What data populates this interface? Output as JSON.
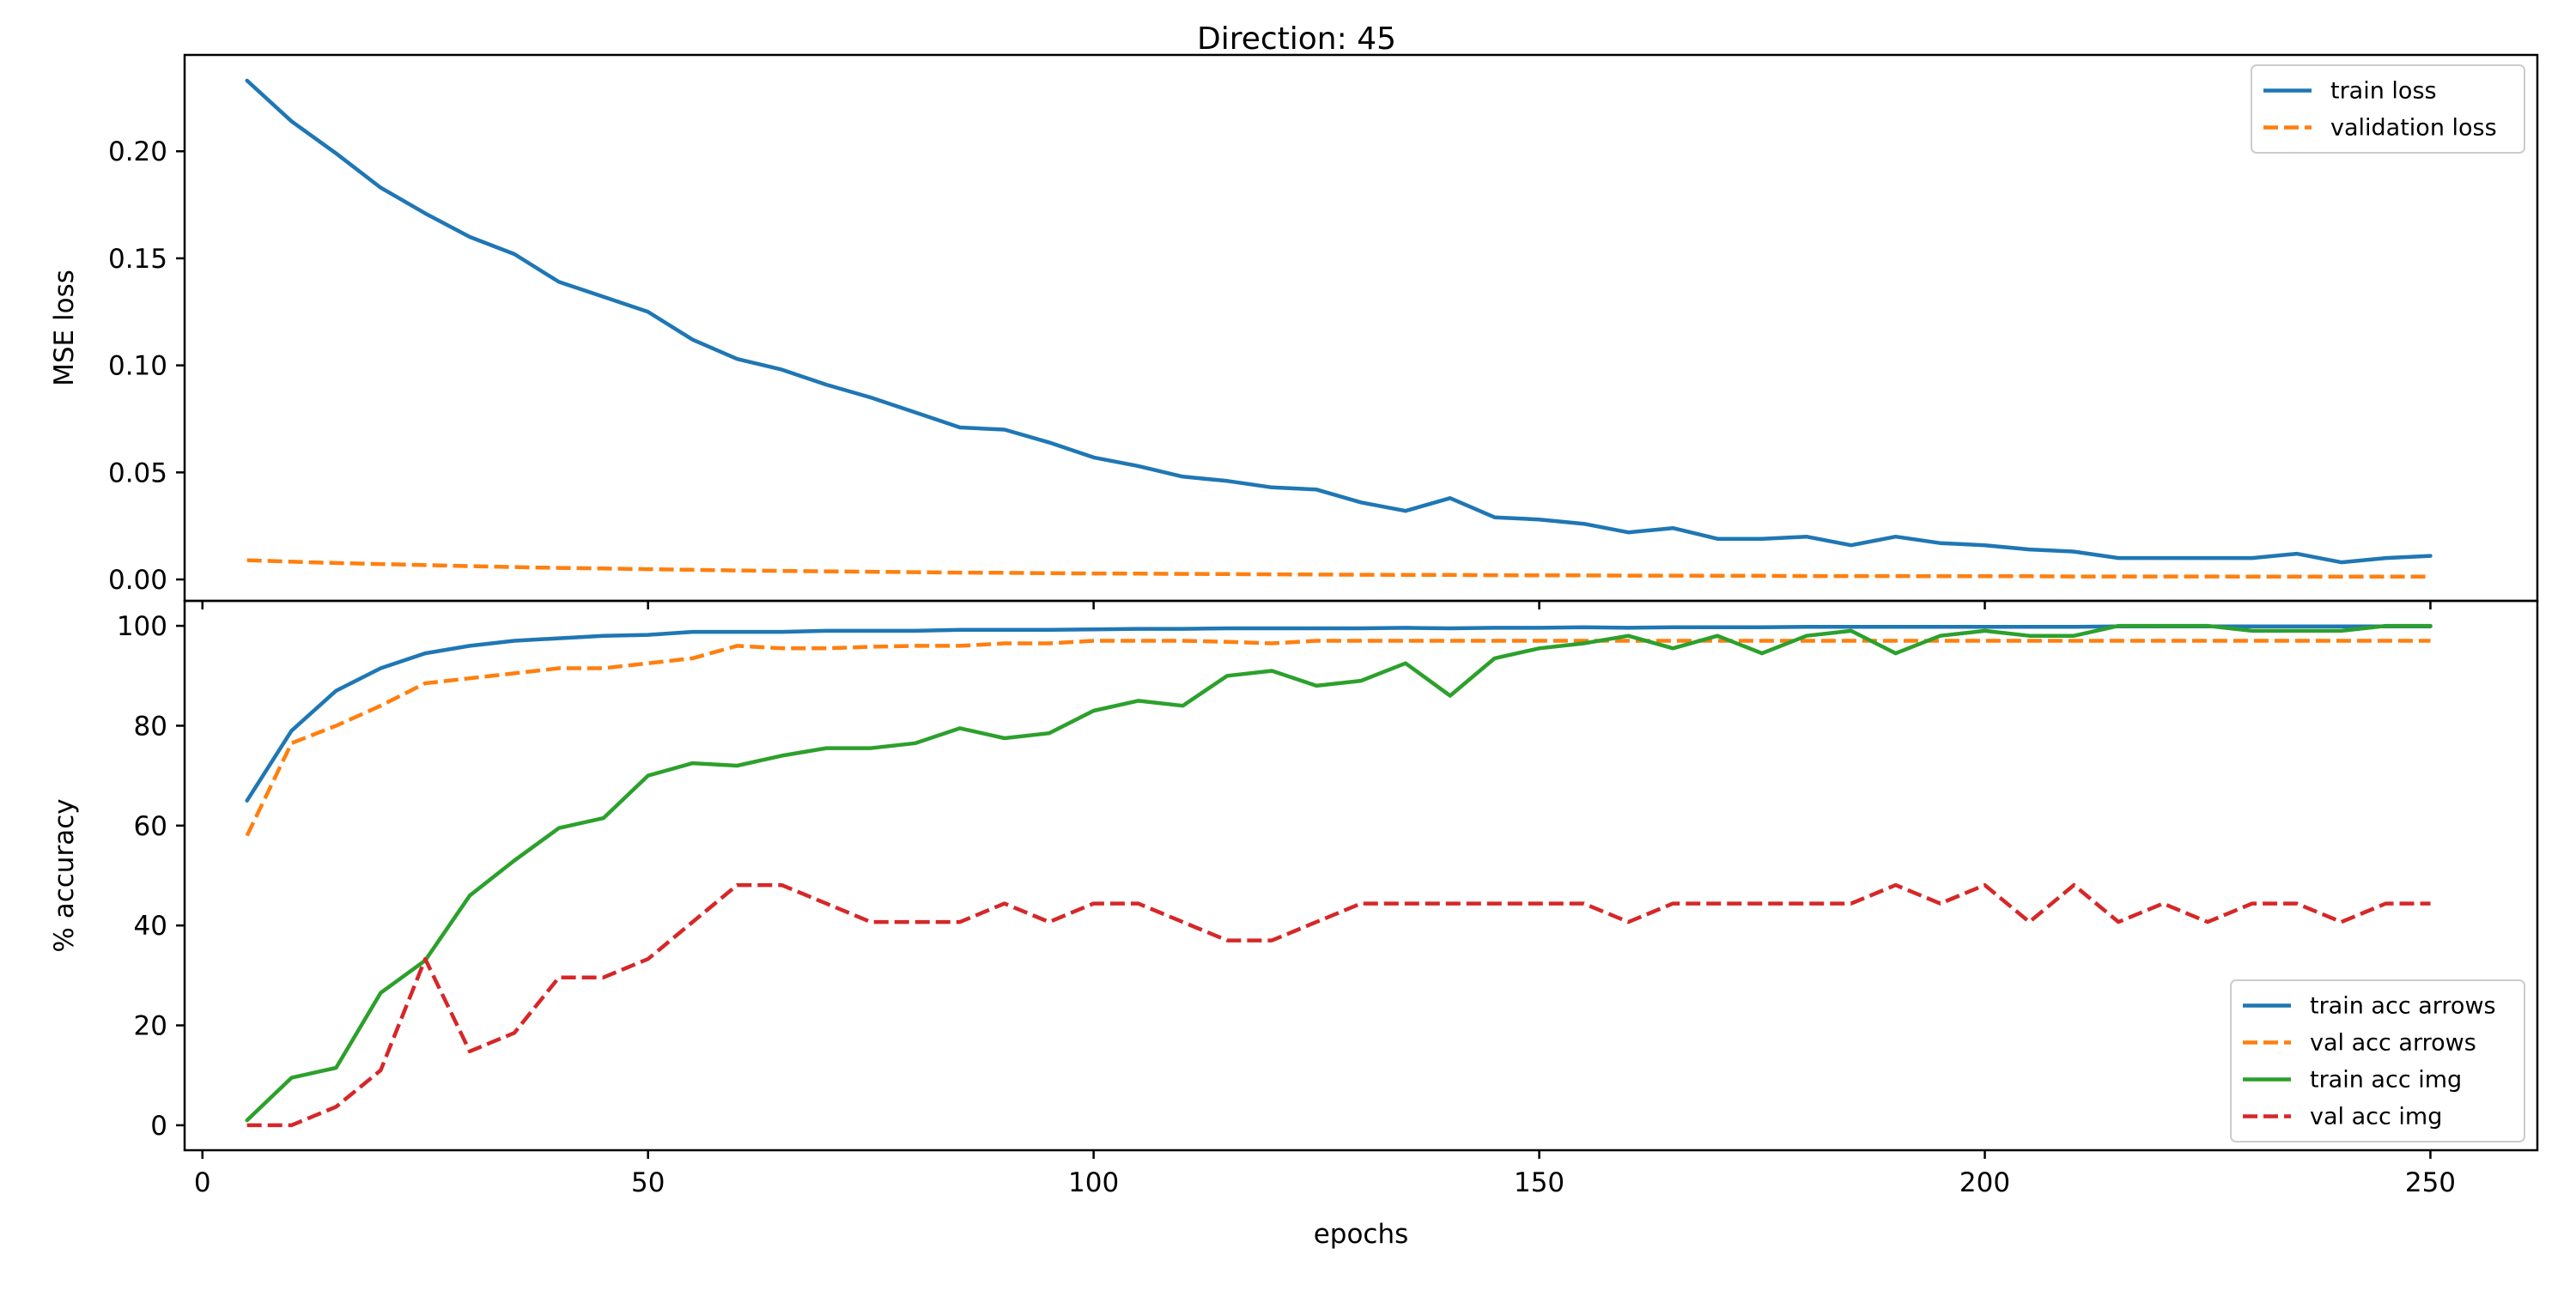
{
  "chart_data": [
    {
      "type": "line",
      "title": "Direction: 45",
      "xlabel": "",
      "ylabel": "MSE loss",
      "xlim": [
        -2,
        262
      ],
      "ylim": [
        -0.01,
        0.245
      ],
      "xticks": [
        0,
        50,
        100,
        150,
        200,
        250
      ],
      "show_xtick_labels": false,
      "yticks": [
        0.0,
        0.05,
        0.1,
        0.15,
        0.2
      ],
      "ytick_labels": [
        "0.00",
        "0.05",
        "0.10",
        "0.15",
        "0.20"
      ],
      "grid": false,
      "legend_position": "top-right",
      "x": [
        5,
        10,
        15,
        20,
        25,
        30,
        35,
        40,
        45,
        50,
        55,
        60,
        65,
        70,
        75,
        80,
        85,
        90,
        95,
        100,
        105,
        110,
        115,
        120,
        125,
        130,
        135,
        140,
        145,
        150,
        155,
        160,
        165,
        170,
        175,
        180,
        185,
        190,
        195,
        200,
        205,
        210,
        215,
        220,
        225,
        230,
        235,
        240,
        245,
        250
      ],
      "series": [
        {
          "name": "train loss",
          "color": "#1f77b4",
          "dashed": false,
          "values": [
            0.233,
            0.214,
            0.199,
            0.183,
            0.171,
            0.16,
            0.152,
            0.139,
            0.132,
            0.125,
            0.112,
            0.103,
            0.098,
            0.091,
            0.085,
            0.078,
            0.071,
            0.07,
            0.064,
            0.057,
            0.053,
            0.048,
            0.046,
            0.043,
            0.042,
            0.036,
            0.032,
            0.038,
            0.029,
            0.028,
            0.026,
            0.022,
            0.024,
            0.019,
            0.019,
            0.02,
            0.016,
            0.02,
            0.017,
            0.016,
            0.014,
            0.013,
            0.01,
            0.01,
            0.01,
            0.01,
            0.012,
            0.008,
            0.01,
            0.011
          ]
        },
        {
          "name": "validation loss",
          "color": "#ff7f0e",
          "dashed": true,
          "values": [
            0.009,
            0.0083,
            0.0077,
            0.0072,
            0.0067,
            0.0062,
            0.0058,
            0.0054,
            0.0051,
            0.0048,
            0.0045,
            0.0042,
            0.004,
            0.0038,
            0.0036,
            0.0034,
            0.0032,
            0.0031,
            0.0029,
            0.0028,
            0.0027,
            0.0026,
            0.0025,
            0.0024,
            0.0023,
            0.0022,
            0.0021,
            0.0021,
            0.002,
            0.0019,
            0.0019,
            0.0018,
            0.0018,
            0.0017,
            0.0017,
            0.0016,
            0.0016,
            0.0016,
            0.0015,
            0.0015,
            0.0015,
            0.0014,
            0.0014,
            0.0014,
            0.0014,
            0.0013,
            0.0013,
            0.0013,
            0.0013,
            0.0013
          ]
        }
      ]
    },
    {
      "type": "line",
      "title": "",
      "xlabel": "epochs",
      "ylabel": "% accuracy",
      "xlim": [
        -2,
        262
      ],
      "ylim": [
        -5,
        105
      ],
      "xticks": [
        0,
        50,
        100,
        150,
        200,
        250
      ],
      "show_xtick_labels": true,
      "yticks": [
        0,
        20,
        40,
        60,
        80,
        100
      ],
      "ytick_labels": [
        "0",
        "20",
        "40",
        "60",
        "80",
        "100"
      ],
      "grid": false,
      "legend_position": "bottom-right",
      "x": [
        5,
        10,
        15,
        20,
        25,
        30,
        35,
        40,
        45,
        50,
        55,
        60,
        65,
        70,
        75,
        80,
        85,
        90,
        95,
        100,
        105,
        110,
        115,
        120,
        125,
        130,
        135,
        140,
        145,
        150,
        155,
        160,
        165,
        170,
        175,
        180,
        185,
        190,
        195,
        200,
        205,
        210,
        215,
        220,
        225,
        230,
        235,
        240,
        245,
        250
      ],
      "series": [
        {
          "name": "train acc arrows",
          "color": "#1f77b4",
          "dashed": false,
          "values": [
            65,
            79,
            87,
            91.5,
            94.5,
            96,
            97,
            97.5,
            98,
            98.2,
            98.8,
            98.8,
            98.8,
            99,
            99,
            99,
            99.2,
            99.2,
            99.2,
            99.3,
            99.4,
            99.4,
            99.5,
            99.5,
            99.5,
            99.5,
            99.6,
            99.5,
            99.6,
            99.6,
            99.7,
            99.6,
            99.7,
            99.7,
            99.7,
            99.8,
            99.8,
            99.8,
            99.8,
            99.8,
            99.8,
            99.8,
            99.9,
            99.9,
            99.9,
            99.9,
            99.9,
            99.9,
            99.9,
            99.9
          ]
        },
        {
          "name": "val acc arrows",
          "color": "#ff7f0e",
          "dashed": true,
          "values": [
            58,
            76.5,
            80,
            84,
            88.5,
            89.5,
            90.5,
            91.5,
            91.5,
            92.5,
            93.5,
            96,
            95.5,
            95.5,
            95.8,
            96,
            96,
            96.5,
            96.5,
            97,
            97,
            97,
            96.8,
            96.5,
            97,
            97,
            97,
            97,
            97,
            97,
            97,
            97,
            97,
            97,
            97,
            97,
            97,
            97,
            97,
            97,
            97,
            97,
            97,
            97,
            97,
            97,
            97,
            97,
            97,
            97
          ]
        },
        {
          "name": "train acc img",
          "color": "#2ca02c",
          "dashed": false,
          "values": [
            1,
            9.5,
            11.5,
            26.5,
            33,
            46,
            53,
            59.5,
            61.5,
            70,
            72.5,
            72,
            74,
            75.5,
            75.5,
            76.5,
            79.5,
            77.5,
            78.5,
            83,
            85,
            84,
            90,
            91,
            88,
            89,
            92.5,
            86,
            93.5,
            95.5,
            96.5,
            98,
            95.5,
            98,
            94.5,
            98,
            99,
            94.5,
            98,
            99,
            98,
            98,
            100,
            100,
            100,
            99,
            99,
            99,
            100,
            100
          ]
        },
        {
          "name": "val acc img",
          "color": "#d62728",
          "dashed": true,
          "values": [
            0,
            0,
            3.7,
            11,
            33.3,
            14.8,
            18.5,
            29.6,
            29.6,
            33.3,
            40.7,
            48.1,
            48.1,
            44.4,
            40.7,
            40.7,
            40.7,
            44.4,
            40.7,
            44.4,
            44.4,
            40.7,
            37,
            37,
            40.7,
            44.4,
            44.4,
            44.4,
            44.4,
            44.4,
            44.4,
            40.7,
            44.4,
            44.4,
            44.4,
            44.4,
            44.4,
            48.1,
            44.4,
            48.1,
            40.7,
            48.1,
            40.7,
            44.4,
            40.7,
            44.4,
            44.4,
            40.7,
            44.4,
            44.4
          ]
        }
      ]
    }
  ]
}
